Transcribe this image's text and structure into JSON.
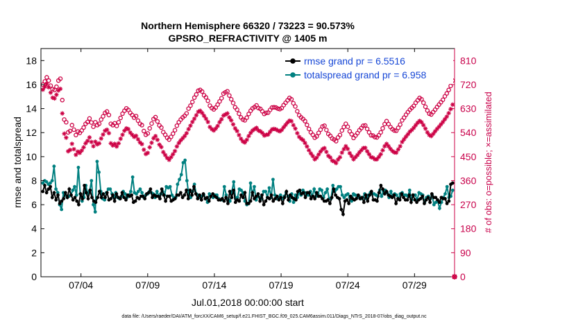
{
  "chart_data": {
    "type": "line",
    "title": "Northern Hemisphere 66320 / 73223 = 90.573%",
    "subtitle": "GPSRO_REFRACTIVITY @ 1405 m",
    "xlabel": "Jul.01,2018 00:00:00 start",
    "ylabel": "rmse and totalspread",
    "ylabel_right": "# of obs: o=possible; ×=assimilated",
    "footer": "data file: /Users/raeder/DAI/ATM_forcXX/CAM6_setup/f.e21.FHIST_BGC.f09_025.CAM6assim.011/Diags_NTrS_2018-07/obs_diag_output.nc",
    "x_ticks": [
      "07/04",
      "07/09",
      "07/14",
      "07/19",
      "07/24",
      "07/29"
    ],
    "x_tick_days": [
      4,
      9,
      14,
      19,
      24,
      29
    ],
    "x_range_days": [
      1,
      32
    ],
    "y_left_ticks": [
      "0",
      "2",
      "4",
      "6",
      "8",
      "10",
      "12",
      "14",
      "16",
      "18"
    ],
    "y_left_range": [
      0,
      19
    ],
    "y_right_ticks": [
      "0",
      "90",
      "180",
      "270",
      "360",
      "450",
      "540",
      "630",
      "720",
      "810"
    ],
    "y_right_range": [
      0,
      855
    ],
    "grid": false,
    "legend_position": "top-right",
    "colors": {
      "rmse": "#000000",
      "spread": "#008080",
      "obs": "#cc0044"
    },
    "series": [
      {
        "name": "rmse grand pr = 6.5516",
        "axis": "left",
        "values": [
          7.1,
          7.6,
          7.0,
          7.3,
          7.5,
          6.6,
          7.0,
          6.4,
          6.8,
          6.1,
          6.3,
          6.5,
          7.0,
          6.6,
          7.3,
          6.8,
          6.4,
          6.6,
          6.3,
          6.0,
          6.9,
          6.5,
          7.6,
          7.0,
          6.5,
          7.2,
          6.6,
          6.3,
          6.2,
          6.6,
          7.1,
          6.6,
          6.9,
          6.6,
          7.0,
          6.4,
          6.5,
          6.8,
          6.3,
          6.9,
          6.6,
          6.5,
          7.0,
          6.6,
          6.4,
          6.8,
          6.7,
          6.8,
          6.2,
          6.3,
          6.6,
          6.5,
          6.7,
          6.7,
          6.5,
          6.9,
          7.0,
          7.3,
          6.6,
          6.8,
          6.7,
          6.7,
          6.5,
          7.3,
          6.8,
          6.3,
          6.7,
          6.7,
          6.3,
          6.4,
          6.5,
          6.8,
          6.8,
          7.0,
          6.6,
          6.8,
          7.2,
          6.5,
          7.2,
          6.8,
          7.5,
          6.9,
          6.5,
          6.8,
          6.4,
          6.9,
          6.5,
          6.6,
          6.3,
          6.7,
          6.9,
          6.7,
          6.6,
          6.4,
          6.4,
          6.5,
          6.3,
          6.6,
          6.1,
          7.1,
          6.6,
          7.2,
          6.2,
          6.4,
          6.3,
          6.8,
          6.6,
          7.0,
          6.1,
          6.1,
          6.3,
          7.0,
          6.5,
          6.7,
          6.9,
          6.3,
          6.8,
          6.0,
          6.3,
          6.6,
          6.5,
          6.8,
          6.3,
          6.5,
          6.7,
          6.4,
          6.6,
          6.1,
          6.6,
          7.1,
          6.4,
          6.8,
          6.6,
          6.5,
          6.4,
          7.1,
          7.2,
          6.9,
          7.0,
          6.6,
          7.0,
          7.0,
          6.5,
          6.7,
          6.5,
          7.0,
          6.7,
          6.7,
          6.5,
          6.3,
          6.3,
          6.4,
          6.1,
          6.6,
          7.3,
          6.8,
          6.6,
          6.5,
          5.6,
          5.2,
          6.3,
          6.4,
          6.1,
          6.7,
          6.5,
          6.4,
          6.5,
          6.8,
          6.5,
          6.6,
          6.2,
          6.8,
          6.3,
          6.8,
          7.1,
          6.4,
          6.4,
          6.3,
          7.0,
          7.6,
          7.3,
          6.9,
          7.1,
          6.8,
          6.7,
          6.6,
          6.8,
          6.1,
          6.5,
          6.4,
          6.9,
          6.6,
          6.4,
          6.4,
          6.8,
          6.2,
          6.8,
          6.4,
          6.2,
          6.4,
          6.5,
          6.7,
          6.1,
          6.4,
          6.6,
          6.2,
          6.9,
          6.6,
          6.6,
          6.4,
          6.2,
          6.6,
          6.5,
          6.5,
          6.1,
          6.3,
          7.7,
          7.8
        ]
      },
      {
        "name": "totalspread grand pr = 6.958",
        "axis": "left",
        "values": [
          7.8,
          8.0,
          7.9,
          7.7,
          7.8,
          8.0,
          9.2,
          7.3,
          7.0,
          6.0,
          5.6,
          7.0,
          6.8,
          6.6,
          6.7,
          6.8,
          7.2,
          7.5,
          6.8,
          9.1,
          6.9,
          6.3,
          6.6,
          7.6,
          6.9,
          7.1,
          8.0,
          6.0,
          5.4,
          9.6,
          8.7,
          7.1,
          6.5,
          6.4,
          7.0,
          7.3,
          7.3,
          6.9,
          6.6,
          7.0,
          6.6,
          6.5,
          6.7,
          7.1,
          6.9,
          6.6,
          6.8,
          7.1,
          8.3,
          7.0,
          6.9,
          7.1,
          7.3,
          7.0,
          6.6,
          6.8,
          6.9,
          7.1,
          7.0,
          6.9,
          6.6,
          7.1,
          6.7,
          6.9,
          7.1,
          6.8,
          7.5,
          7.4,
          7.5,
          6.8,
          6.6,
          6.6,
          7.7,
          8.1,
          8.5,
          9.5,
          9.7,
          8.0,
          6.8,
          6.6,
          7.1,
          7.7,
          6.9,
          6.8,
          6.6,
          6.7,
          6.8,
          6.5,
          6.2,
          6.9,
          6.7,
          6.6,
          6.8,
          6.8,
          6.5,
          6.4,
          6.4,
          7.5,
          6.8,
          6.4,
          6.3,
          7.1,
          7.9,
          6.5,
          6.6,
          7.3,
          7.2,
          7.0,
          6.3,
          6.0,
          6.1,
          7.8,
          6.8,
          7.5,
          6.4,
          6.7,
          6.6,
          6.5,
          7.1,
          7.1,
          6.6,
          7.4,
          6.6,
          8.1,
          6.8,
          6.5,
          6.6,
          6.8,
          6.5,
          6.7,
          7.0,
          6.7,
          6.3,
          6.9,
          6.2,
          6.8,
          6.6,
          7.0,
          6.8,
          7.2,
          7.0,
          6.8,
          6.8,
          7.1,
          6.7,
          7.3,
          6.7,
          6.9,
          7.3,
          7.2,
          6.6,
          7.0,
          7.3,
          6.5,
          6.5,
          7.6,
          7.1,
          7.3,
          7.5,
          7.5,
          6.8,
          6.6,
          6.8,
          6.9,
          6.6,
          6.3,
          6.9,
          6.8,
          6.6,
          6.7,
          6.5,
          6.6,
          6.9,
          6.5,
          6.8,
          7.0,
          6.9,
          6.9,
          6.8,
          6.7,
          7.2,
          6.7,
          7.1,
          7.2,
          7.0,
          6.6,
          7.1,
          6.7,
          6.9,
          6.8,
          6.5,
          6.9,
          7.0,
          6.8,
          6.8,
          6.7,
          7.2,
          6.4,
          6.8,
          6.8,
          6.4,
          7.0,
          6.9,
          6.8,
          6.2,
          6.6,
          6.7,
          6.5,
          6.8,
          6.0,
          6.2,
          6.3,
          5.7,
          6.2,
          6.6,
          6.9,
          7.5,
          6.6,
          6.7,
          7.2
        ]
      },
      {
        "name": "obs possible",
        "axis": "right",
        "marker": "o",
        "values": [
          720,
          732,
          747,
          735,
          716,
          703,
          700,
          712,
          735,
          742,
          662,
          589,
          579,
          541,
          546,
          568,
          551,
          531,
          544,
          539,
          548,
          559,
          573,
          580,
          593,
          578,
          562,
          579,
          568,
          573,
          589,
          601,
          614,
          619,
          606,
          573,
          568,
          575,
          565,
          579,
          595,
          611,
          622,
          631,
          625,
          614,
          606,
          596,
          602,
          585,
          573,
          568,
          546,
          532,
          537,
          556,
          574,
          591,
          598,
          582,
          567,
          559,
          542,
          532,
          521,
          514,
          524,
          536,
          549,
          566,
          579,
          589,
          597,
          603,
          612,
          630,
          641,
          655,
          671,
          683,
          697,
          700,
          694,
          680,
          672,
          659,
          641,
          632,
          627,
          634,
          645,
          657,
          669,
          686,
          691,
          695,
          679,
          665,
          651,
          635,
          626,
          611,
          597,
          589,
          586,
          596,
          610,
          622,
          631,
          636,
          642,
          632,
          629,
          620,
          610,
          614,
          615,
          625,
          634,
          635,
          634,
          630,
          628,
          632,
          643,
          652,
          661,
          670,
          665,
          650,
          638,
          620,
          605,
          597,
          591,
          583,
          569,
          554,
          541,
          532,
          521,
          526,
          539,
          551,
          563,
          566,
          550,
          535,
          528,
          518,
          514,
          508,
          522,
          531,
          548,
          561,
          573,
          562,
          545,
          534,
          520,
          529,
          538,
          549,
          557,
          566,
          567,
          554,
          541,
          530,
          529,
          523,
          522,
          530,
          541,
          556,
          572,
          583,
          572,
          561,
          553,
          548,
          547,
          558,
          570,
          586,
          596,
          607,
          617,
          626,
          633,
          640,
          652,
          661,
          670,
          665,
          652,
          637,
          623,
          611,
          608,
          617,
          626,
          636,
          645,
          654,
          663,
          676,
          687,
          700,
          715,
          735
        ]
      },
      {
        "name": "obs assimilated",
        "axis": "right",
        "marker": "x",
        "values": [
          701,
          712,
          723,
          710,
          690,
          671,
          668,
          682,
          698,
          704,
          612,
          536,
          521,
          470,
          475,
          498,
          478,
          457,
          469,
          464,
          473,
          485,
          500,
          509,
          522,
          505,
          489,
          506,
          496,
          500,
          518,
          533,
          547,
          551,
          538,
          500,
          492,
          498,
          488,
          500,
          517,
          532,
          547,
          556,
          553,
          540,
          532,
          524,
          528,
          515,
          503,
          497,
          476,
          460,
          464,
          485,
          502,
          519,
          527,
          513,
          495,
          486,
          467,
          456,
          445,
          438,
          448,
          459,
          471,
          488,
          501,
          511,
          519,
          527,
          538,
          553,
          566,
          580,
          592,
          605,
          618,
          622,
          614,
          603,
          592,
          580,
          561,
          553,
          548,
          555,
          565,
          579,
          590,
          604,
          608,
          612,
          597,
          586,
          571,
          556,
          546,
          531,
          517,
          507,
          503,
          513,
          527,
          539,
          548,
          553,
          558,
          548,
          545,
          539,
          529,
          532,
          533,
          543,
          552,
          554,
          552,
          548,
          545,
          550,
          560,
          569,
          578,
          585,
          583,
          568,
          555,
          538,
          524,
          517,
          512,
          501,
          488,
          474,
          462,
          452,
          440,
          446,
          458,
          469,
          478,
          482,
          468,
          453,
          447,
          435,
          432,
          426,
          439,
          448,
          465,
          478,
          489,
          479,
          463,
          452,
          440,
          448,
          456,
          466,
          474,
          482,
          483,
          470,
          459,
          448,
          446,
          440,
          440,
          449,
          459,
          474,
          489,
          498,
          489,
          479,
          471,
          466,
          465,
          477,
          489,
          505,
          515,
          525,
          534,
          544,
          550,
          558,
          568,
          577,
          584,
          579,
          568,
          555,
          541,
          531,
          527,
          535,
          545,
          554,
          562,
          571,
          580,
          590,
          600,
          613,
          628,
          645
        ]
      }
    ]
  }
}
